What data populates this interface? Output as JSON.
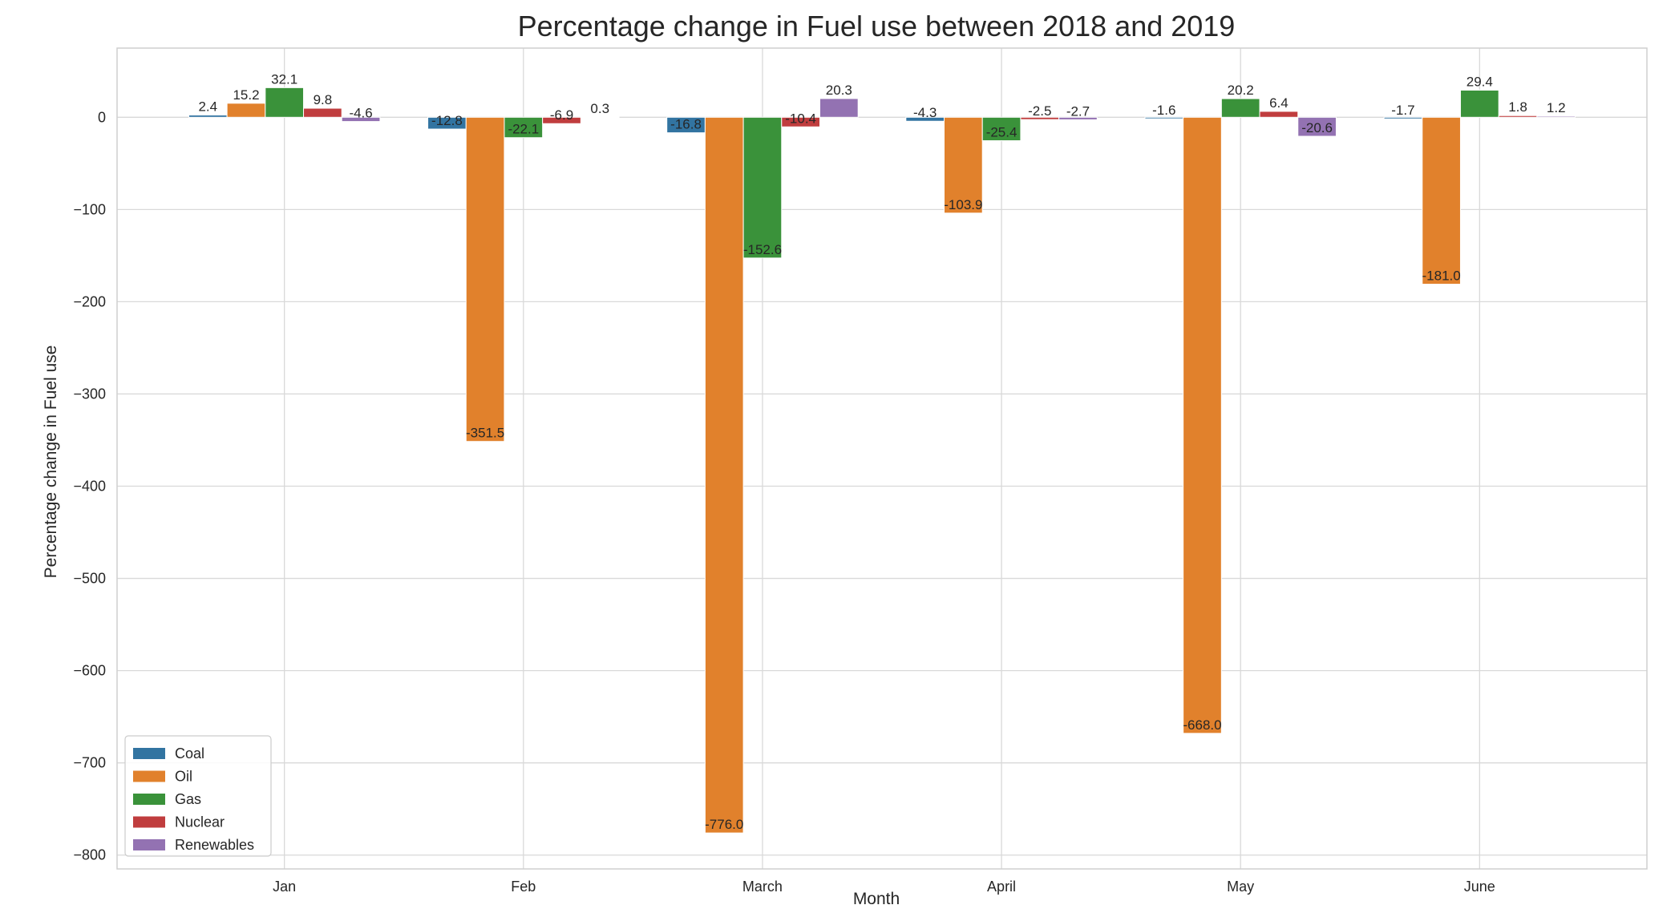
{
  "chart_data": {
    "type": "bar",
    "title": "Percentage change in Fuel use between 2018 and 2019",
    "xlabel": "Month",
    "ylabel": "Percentage change in Fuel use",
    "ylim": [
      -815,
      75
    ],
    "yticks": [
      0,
      -100,
      -200,
      -300,
      -400,
      -500,
      -600,
      -700,
      -800
    ],
    "ytick_labels": [
      "0",
      "−100",
      "−200",
      "−300",
      "−400",
      "−500",
      "−600",
      "−700",
      "−800"
    ],
    "grid": true,
    "legend_position": "lower-left",
    "categories": [
      "Jan",
      "Feb",
      "March",
      "April",
      "May",
      "June"
    ],
    "series": [
      {
        "name": "Coal",
        "color": "#3274a1",
        "values": [
          2.4,
          -12.8,
          -16.8,
          -4.3,
          -1.6,
          -1.7
        ],
        "labels": [
          "2.4",
          "-12.8",
          "-16.8",
          "-4.3",
          "-1.6",
          "-1.7"
        ]
      },
      {
        "name": "Oil",
        "color": "#e1812c",
        "values": [
          15.2,
          -351.5,
          -776.0,
          -103.9,
          -668.0,
          -181.0
        ],
        "labels": [
          "15.2",
          "-351.5",
          "-776.0",
          "-103.9",
          "-668.0",
          "-181.0"
        ]
      },
      {
        "name": "Gas",
        "color": "#3a923a",
        "values": [
          32.1,
          -22.1,
          -152.6,
          -25.4,
          20.2,
          29.4
        ],
        "labels": [
          "32.1",
          "-22.1",
          "-152.6",
          "-25.4",
          "20.2",
          "29.4"
        ]
      },
      {
        "name": "Nuclear",
        "color": "#c03d3e",
        "values": [
          9.8,
          -6.9,
          -10.4,
          -2.5,
          6.4,
          1.8
        ],
        "labels": [
          "9.8",
          "-6.9",
          "-10.4",
          "-2.5",
          "6.4",
          "1.8"
        ]
      },
      {
        "name": "Renewables",
        "color": "#9372b2",
        "values": [
          -4.6,
          0.3,
          20.3,
          -2.7,
          -20.6,
          1.2
        ],
        "labels": [
          "-4.6",
          "0.3",
          "20.3",
          "-2.7",
          "-20.6",
          "1.2"
        ]
      }
    ]
  }
}
